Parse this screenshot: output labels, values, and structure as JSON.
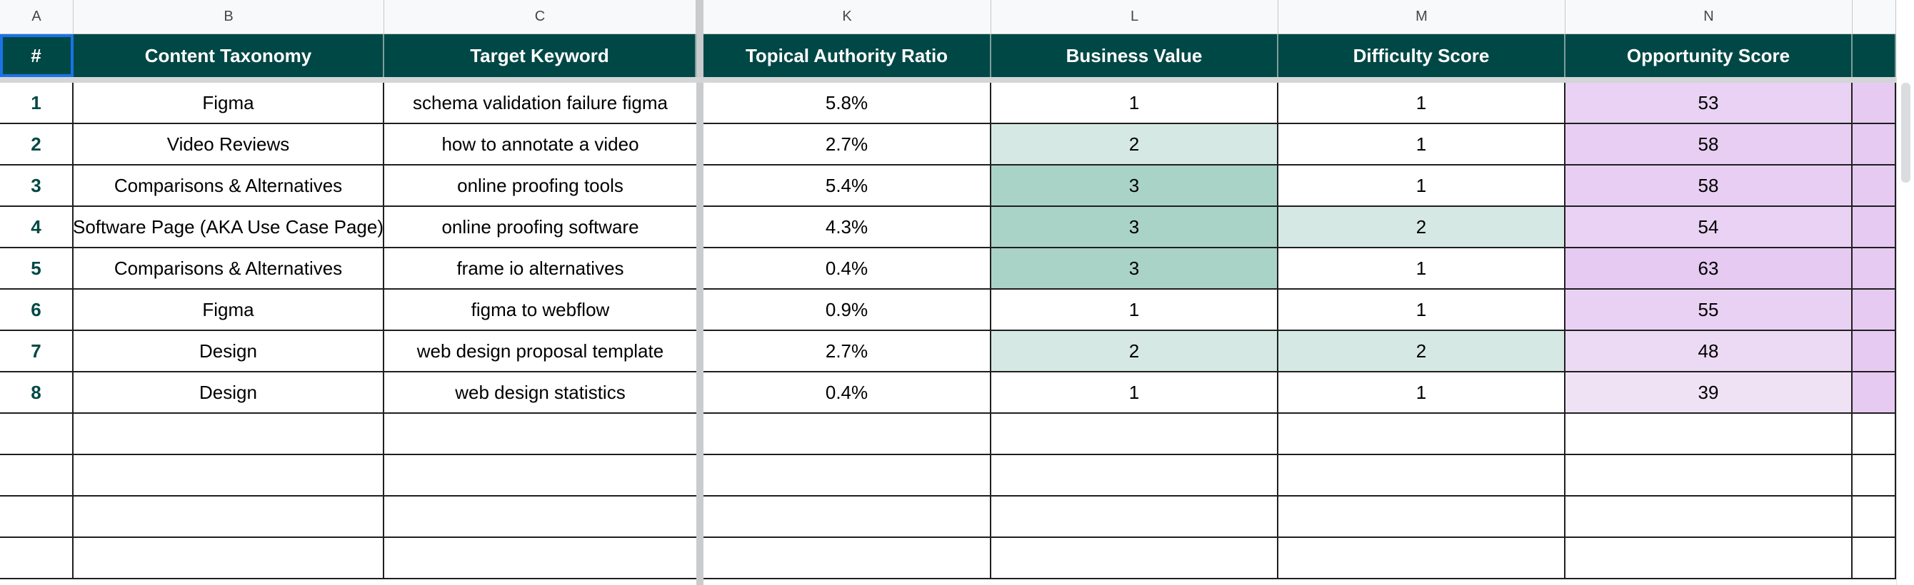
{
  "column_letters": [
    "A",
    "B",
    "C",
    "K",
    "L",
    "M",
    "N",
    ""
  ],
  "headers": [
    "#",
    "Content Taxonomy",
    "Target Keyword",
    "Topical Authority Ratio",
    "Business Value",
    "Difficulty Score",
    "Opportunity Score",
    ""
  ],
  "rows": [
    {
      "num": "1",
      "taxonomy": "Figma",
      "keyword": "schema validation failure figma",
      "tar": "5.8%",
      "bv": "1",
      "ds": "1",
      "os": "53",
      "bv_level": 1,
      "ds_level": 1,
      "os_level": 0.72
    },
    {
      "num": "2",
      "taxonomy": "Video Reviews",
      "keyword": "how to annotate a video",
      "tar": "2.7%",
      "bv": "2",
      "ds": "1",
      "os": "58",
      "bv_level": 2,
      "ds_level": 1,
      "os_level": 0.86
    },
    {
      "num": "3",
      "taxonomy": "Comparisons & Alternatives",
      "keyword": "online proofing tools",
      "tar": "5.4%",
      "bv": "3",
      "ds": "1",
      "os": "58",
      "bv_level": 3,
      "ds_level": 1,
      "os_level": 0.86
    },
    {
      "num": "4",
      "taxonomy": "Software Page (AKA Use Case Page)",
      "keyword": "online proofing software",
      "tar": "4.3%",
      "bv": "3",
      "ds": "2",
      "os": "54",
      "bv_level": 3,
      "ds_level": 2,
      "os_level": 0.75
    },
    {
      "num": "5",
      "taxonomy": "Comparisons & Alternatives",
      "keyword": "frame io alternatives",
      "tar": "0.4%",
      "bv": "3",
      "ds": "1",
      "os": "63",
      "bv_level": 3,
      "ds_level": 1,
      "os_level": 1.0
    },
    {
      "num": "6",
      "taxonomy": "Figma",
      "keyword": "figma to webflow",
      "tar": "0.9%",
      "bv": "1",
      "ds": "1",
      "os": "55",
      "bv_level": 1,
      "ds_level": 1,
      "os_level": 0.78
    },
    {
      "num": "7",
      "taxonomy": "Design",
      "keyword": "web design proposal template",
      "tar": "2.7%",
      "bv": "2",
      "ds": "2",
      "os": "48",
      "bv_level": 2,
      "ds_level": 2,
      "os_level": 0.5
    },
    {
      "num": "8",
      "taxonomy": "Design",
      "keyword": "web design statistics",
      "tar": "0.4%",
      "bv": "1",
      "ds": "1",
      "os": "39",
      "bv_level": 1,
      "ds_level": 1,
      "os_level": 0.2
    }
  ],
  "empty_rows": 4,
  "colors": {
    "header_bg": "#004845",
    "header_text": "#ffffff",
    "row_number_text": "#004845",
    "selection_border": "#1a73e8",
    "level2_green": "#d5e8e3",
    "level3_green": "#a9d3c6",
    "opportunity_low": "#f2e8f6",
    "opportunity_high": "#e6caf2",
    "extra_column_purple": "#e6caf2"
  }
}
